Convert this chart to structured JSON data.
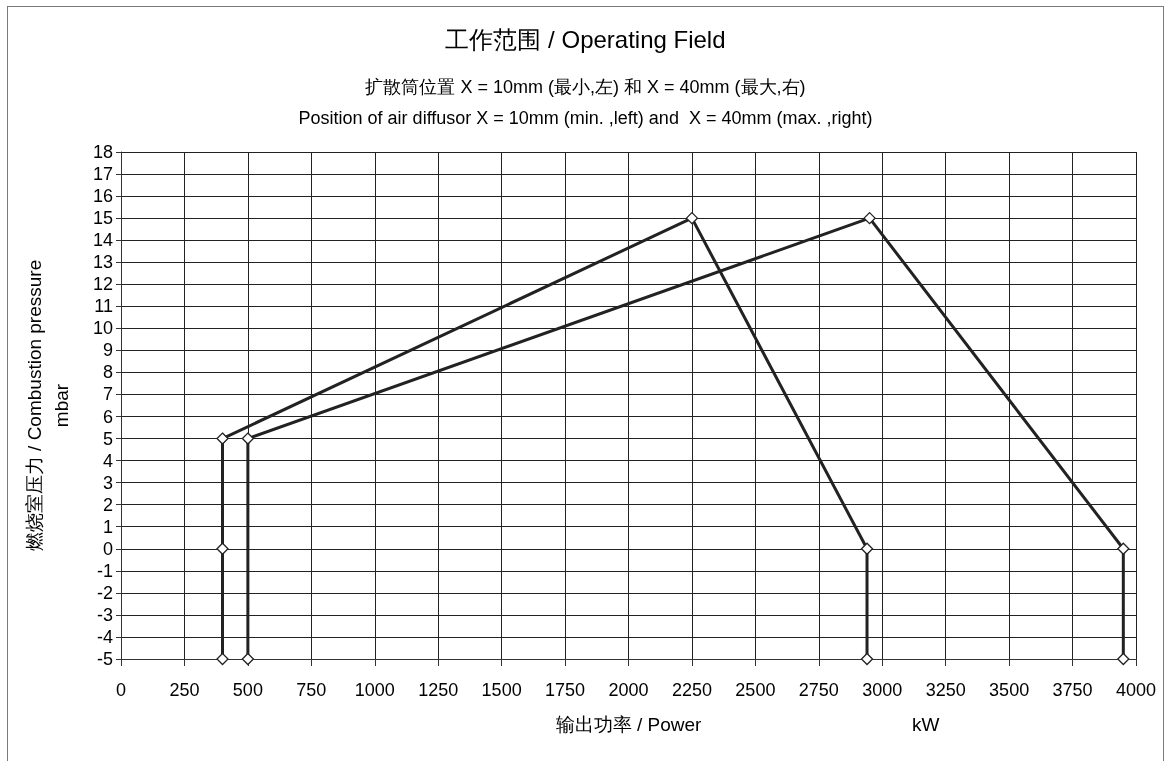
{
  "chart_data": {
    "type": "line",
    "title": "工作范围 / Operating Field",
    "subtitle": "扩散筒位置 X = 10mm (最小,左) 和 X = 40mm (最大,右)\nPosition of air diffusor X = 10mm (min. ,left) and  X = 40mm (max. ,right)",
    "xlabel": "输出功率 / Power",
    "ylabel": "燃烧室压力 / Combustion pressure\nmbar",
    "annotations": [
      "kW"
    ],
    "series": [
      {
        "color": "#222222",
        "x": [
          400,
          400,
          400,
          2250,
          2940,
          2940
        ],
        "values": [
          -5,
          0,
          5,
          15,
          0,
          -5
        ]
      },
      {
        "color": "#222222",
        "x": [
          500,
          500,
          2950,
          3950,
          3950
        ],
        "values": [
          -5,
          5,
          15,
          0,
          -5
        ]
      }
    ],
    "xlim": [
      0,
      4000
    ],
    "xticks": [
      0,
      250,
      500,
      750,
      1000,
      1250,
      1500,
      1750,
      2000,
      2250,
      2500,
      2750,
      3000,
      3250,
      3500,
      3750,
      4000
    ],
    "ylim": [
      -5,
      18
    ],
    "yticks": [
      -5,
      -4,
      -3,
      -2,
      -1,
      0,
      1,
      2,
      3,
      4,
      5,
      6,
      7,
      8,
      9,
      10,
      11,
      12,
      13,
      14,
      15,
      16,
      17,
      18
    ],
    "grid": true,
    "marker": "diamond",
    "line_style": "solid"
  }
}
